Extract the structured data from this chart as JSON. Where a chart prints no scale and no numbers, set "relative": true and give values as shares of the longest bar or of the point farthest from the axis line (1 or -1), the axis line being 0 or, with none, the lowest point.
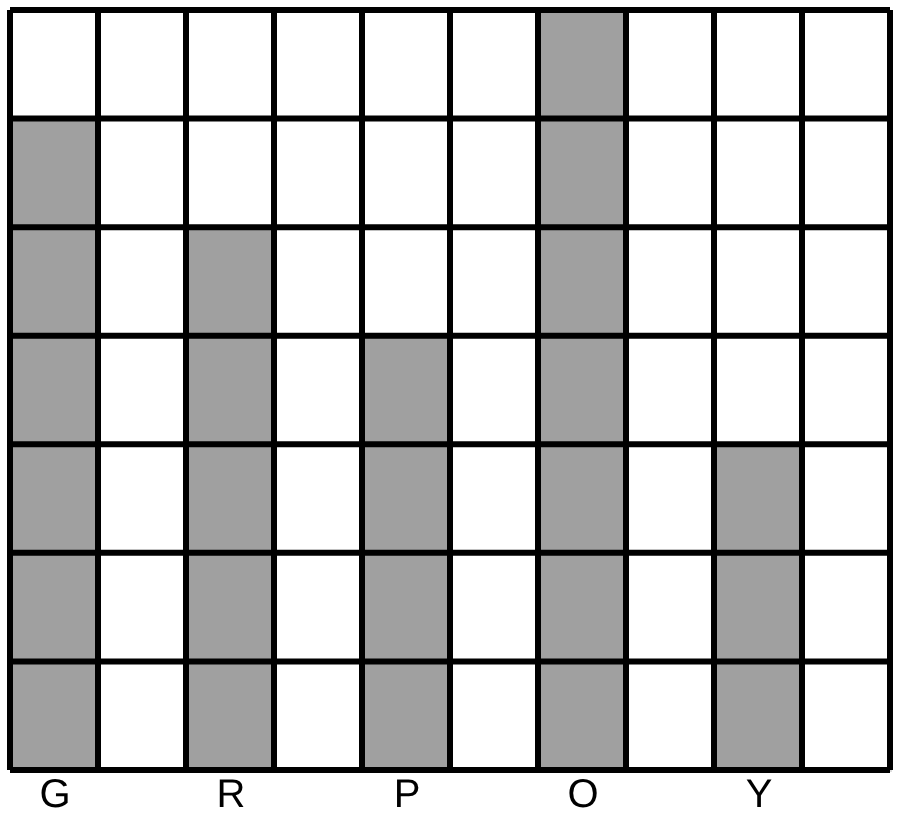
{
  "chart_data": {
    "type": "bar",
    "relative": true,
    "categories": [
      "G",
      "R",
      "P",
      "O",
      "Y"
    ],
    "values": [
      0.857,
      0.714,
      0.571,
      1,
      0.429
    ],
    "color": "#a0a0a0",
    "grid": true
  }
}
